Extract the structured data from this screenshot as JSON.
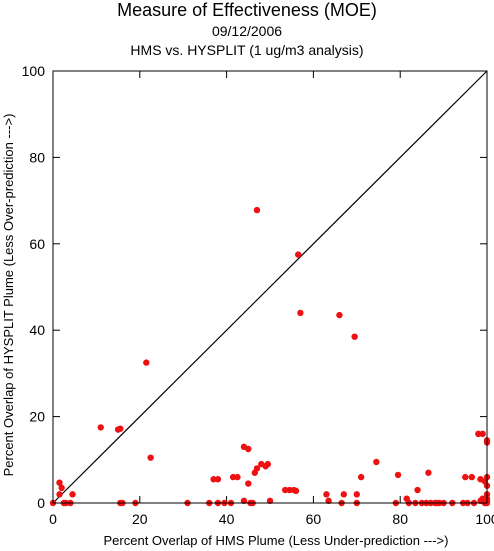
{
  "chart_data": {
    "type": "scatter",
    "title": "Measure of Effectiveness (MOE)",
    "date": "09/12/2006",
    "subtitle": "HMS vs. HYSPLIT  (1 ug/m3 analysis)",
    "xlabel": "Percent Overlap of HMS Plume (Less Under-prediction --->)",
    "ylabel": "Percent Overlap of HYSPLIT Plume (Less Over-prediction --->)",
    "xlim": [
      0,
      100
    ],
    "ylim": [
      0,
      100
    ],
    "xticks": [
      "0",
      "20",
      "40",
      "60",
      "80",
      "100"
    ],
    "yticks": [
      "0",
      "20",
      "40",
      "60",
      "80",
      "100"
    ],
    "reference_line": "diagonal y = x",
    "grid": false,
    "marker_color": "#ee1111",
    "points": [
      [
        0,
        0
      ],
      [
        1.5,
        2
      ],
      [
        1.5,
        4.7
      ],
      [
        2,
        3.5
      ],
      [
        2.5,
        0
      ],
      [
        3,
        0
      ],
      [
        4.5,
        2
      ],
      [
        4,
        0
      ],
      [
        11,
        17.5
      ],
      [
        15,
        17
      ],
      [
        15.5,
        17.2
      ],
      [
        15.5,
        0
      ],
      [
        16,
        0
      ],
      [
        19,
        0
      ],
      [
        21.5,
        32.5
      ],
      [
        22.5,
        10.5
      ],
      [
        31,
        0
      ],
      [
        36,
        0
      ],
      [
        37,
        5.5
      ],
      [
        38,
        5.5
      ],
      [
        38,
        0
      ],
      [
        39.5,
        0
      ],
      [
        41,
        0
      ],
      [
        41.5,
        6
      ],
      [
        42.5,
        6
      ],
      [
        44,
        13
      ],
      [
        44,
        0.5
      ],
      [
        45,
        12.5
      ],
      [
        45,
        4.5
      ],
      [
        45.5,
        0
      ],
      [
        46,
        0
      ],
      [
        46.5,
        7
      ],
      [
        47,
        8
      ],
      [
        47,
        67.8
      ],
      [
        48,
        9
      ],
      [
        49,
        8.5
      ],
      [
        49.5,
        9
      ],
      [
        50,
        0.5
      ],
      [
        53.5,
        3
      ],
      [
        54.5,
        3
      ],
      [
        55.5,
        3
      ],
      [
        56,
        2.8
      ],
      [
        56.5,
        57.5
      ],
      [
        57,
        44
      ],
      [
        63,
        2
      ],
      [
        63.5,
        0.5
      ],
      [
        66,
        43.5
      ],
      [
        66.5,
        0
      ],
      [
        67,
        2
      ],
      [
        69.5,
        38.5
      ],
      [
        70,
        2
      ],
      [
        70,
        0
      ],
      [
        71,
        6
      ],
      [
        74.5,
        9.5
      ],
      [
        79,
        0
      ],
      [
        79.5,
        6.5
      ],
      [
        81.5,
        1
      ],
      [
        82,
        0
      ],
      [
        83.5,
        0
      ],
      [
        84,
        3
      ],
      [
        85,
        0
      ],
      [
        86,
        0
      ],
      [
        86.5,
        7
      ],
      [
        87,
        0
      ],
      [
        88,
        0
      ],
      [
        88.5,
        0
      ],
      [
        89,
        0
      ],
      [
        90,
        0
      ],
      [
        92,
        0
      ],
      [
        94.5,
        0
      ],
      [
        95,
        6
      ],
      [
        95.5,
        0
      ],
      [
        96.5,
        6
      ],
      [
        97,
        0
      ],
      [
        98,
        16
      ],
      [
        98.5,
        5.5
      ],
      [
        98.5,
        0.5
      ],
      [
        99,
        16
      ],
      [
        99,
        1
      ],
      [
        99.5,
        5
      ],
      [
        99.5,
        0
      ],
      [
        100,
        14.5
      ],
      [
        100,
        14
      ],
      [
        100,
        6
      ],
      [
        100,
        4
      ],
      [
        100,
        2
      ],
      [
        100,
        1
      ],
      [
        100,
        0.5
      ],
      [
        100,
        0
      ]
    ]
  }
}
